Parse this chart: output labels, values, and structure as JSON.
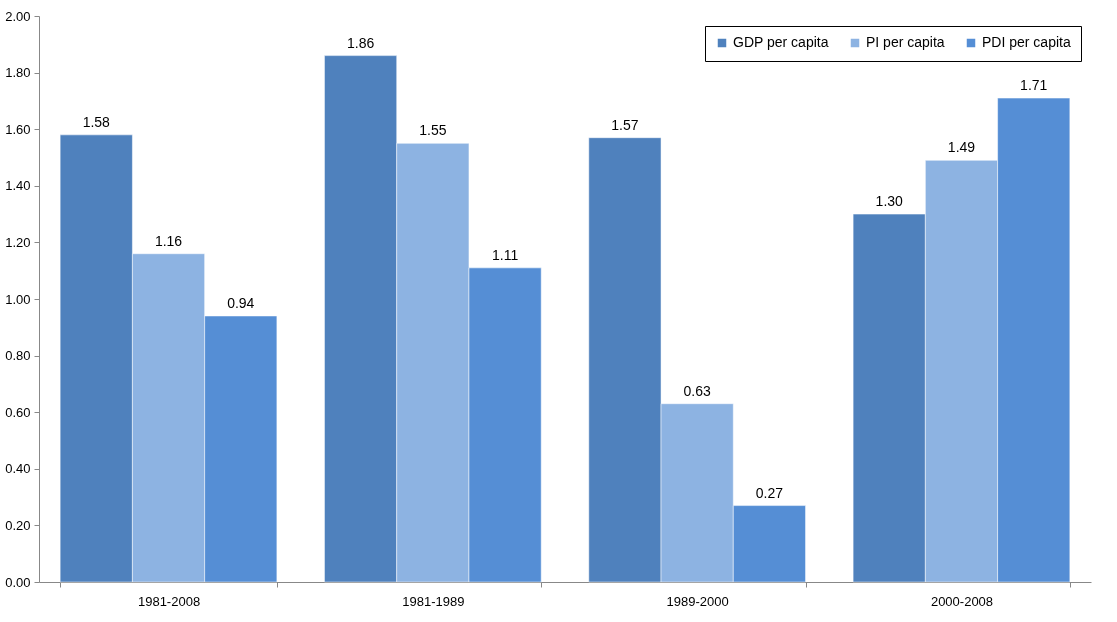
{
  "chart_data": {
    "type": "bar",
    "categories": [
      "1981-2008",
      "1981-1989",
      "1989-2000",
      "2000-2008"
    ],
    "series": [
      {
        "name": "GDP per capita",
        "color": "#4f81bd",
        "values": [
          1.58,
          1.86,
          1.57,
          1.3
        ],
        "value_labels": [
          "1.58",
          "1.86",
          "1.57",
          "1.30"
        ]
      },
      {
        "name": "PI per capita",
        "color": "#8db3e2",
        "values": [
          1.16,
          1.55,
          0.63,
          1.49
        ],
        "value_labels": [
          "1.16",
          "1.55",
          "0.63",
          "1.49"
        ]
      },
      {
        "name": "PDI per capita",
        "color": "#558ed5",
        "values": [
          0.94,
          1.11,
          0.27,
          1.71
        ],
        "value_labels": [
          "0.94",
          "1.11",
          "0.27",
          "1.71"
        ]
      }
    ],
    "ylim": [
      0,
      2
    ],
    "yticks": [
      {
        "value": 0,
        "label": "0.00"
      },
      {
        "value": 0.2,
        "label": "0.20"
      },
      {
        "value": 0.4,
        "label": "0.40"
      },
      {
        "value": 0.6,
        "label": "0.60"
      },
      {
        "value": 0.8,
        "label": "0.80"
      },
      {
        "value": 1,
        "label": "1.00"
      },
      {
        "value": 1.2,
        "label": "1.20"
      },
      {
        "value": 1.4,
        "label": "1.40"
      },
      {
        "value": 1.6,
        "label": "1.60"
      },
      {
        "value": 1.8,
        "label": "1.80"
      },
      {
        "value": 2,
        "label": "2.00"
      }
    ],
    "legend": "top right"
  }
}
